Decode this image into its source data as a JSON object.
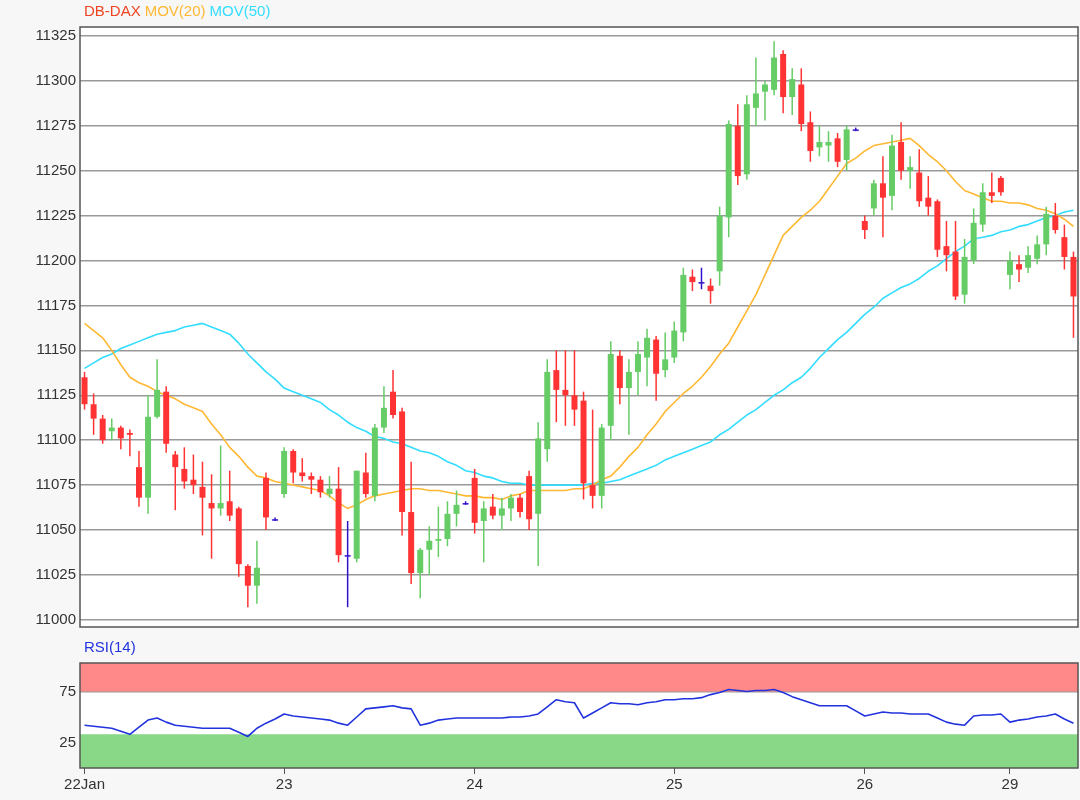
{
  "chart_data": [
    {
      "type": "candlestick",
      "legend": "top left",
      "grid": "y",
      "tick_labels": "y",
      "marker": "none",
      "categories": [
        null,
        null,
        null,
        null,
        null,
        null,
        null,
        null,
        null,
        null,
        null,
        null,
        null,
        null,
        null,
        null,
        null,
        null,
        null,
        null,
        null,
        null,
        null,
        null,
        null,
        null,
        null,
        null,
        null,
        null,
        null,
        null,
        null,
        null,
        null,
        null,
        null,
        null,
        null,
        null,
        null,
        null,
        null,
        null,
        null,
        null,
        null,
        null,
        null,
        null,
        null,
        null,
        null,
        null,
        null,
        null,
        null,
        null,
        null,
        null,
        null,
        null,
        null,
        null,
        null,
        null,
        null,
        null,
        null,
        null,
        null,
        null,
        null,
        null,
        null,
        null,
        null,
        null,
        null,
        null,
        null,
        null,
        null,
        null,
        null,
        null,
        null,
        null,
        null,
        null,
        null,
        null,
        null,
        null,
        null,
        null,
        null,
        null,
        null,
        null,
        null,
        null,
        null,
        null,
        null,
        null,
        null,
        null,
        null,
        null
      ],
      "ylim": [
        10996,
        11330
      ],
      "yticks": [
        11000,
        11025,
        11050,
        11075,
        11100,
        11125,
        11150,
        11175,
        11200,
        11225,
        11250,
        11275,
        11300,
        11325
      ],
      "series": [
        {
          "name": "DB-DAX",
          "color": "#ee4422",
          "ohlc": [
            [
              11135,
              11138,
              11117,
              11120
            ],
            [
              11120,
              11126,
              11103,
              11112
            ],
            [
              11112,
              11114,
              11098,
              11100
            ],
            [
              11105,
              11112,
              11100,
              11107
            ],
            [
              11107,
              11108,
              11095,
              11101
            ],
            [
              11104,
              11106,
              11091,
              11103
            ],
            [
              11085,
              11094,
              11063,
              11068
            ],
            [
              11068,
              11125,
              11059,
              11113
            ],
            [
              11113,
              11145,
              11112,
              11128
            ],
            [
              11127,
              11130,
              11093,
              11098
            ],
            [
              11092,
              11094,
              11061,
              11085
            ],
            [
              11084,
              11096,
              11073,
              11077
            ],
            [
              11078,
              11092,
              11070,
              11075
            ],
            [
              11074,
              11088,
              11047,
              11068
            ],
            [
              11065,
              11081,
              11034,
              11062
            ],
            [
              11062,
              11097,
              11058,
              11065
            ],
            [
              11066,
              11083,
              11055,
              11058
            ],
            [
              11062,
              11063,
              11024,
              11031
            ],
            [
              11030,
              11031,
              11007,
              11019
            ],
            [
              11019,
              11044,
              11009,
              11029
            ],
            [
              11079,
              11082,
              11050,
              11057
            ],
            [
              11056,
              11057,
              11055,
              11056
            ],
            [
              11070,
              11096,
              11068,
              11094
            ],
            [
              11094,
              11095,
              11076,
              11082
            ],
            [
              11082,
              11090,
              11077,
              11080
            ],
            [
              11080,
              11082,
              11070,
              11078
            ],
            [
              11078,
              11080,
              11068,
              11071
            ],
            [
              11070,
              11080,
              11068,
              11073
            ],
            [
              11073,
              11085,
              11032,
              11036
            ],
            [
              11036,
              11055,
              11007,
              11036
            ],
            [
              11034,
              11083,
              11032,
              11083
            ],
            [
              11082,
              11093,
              11068,
              11070
            ],
            [
              11069,
              11109,
              11066,
              11107
            ],
            [
              11107,
              11130,
              11104,
              11118
            ],
            [
              11127,
              11139,
              11112,
              11114
            ],
            [
              11116,
              11118,
              11047,
              11060
            ],
            [
              11060,
              11088,
              11020,
              11026
            ],
            [
              11026,
              11040,
              11012,
              11039
            ],
            [
              11039,
              11052,
              11025,
              11044
            ],
            [
              11044,
              11063,
              11035,
              11045
            ],
            [
              11045,
              11066,
              11041,
              11059
            ],
            [
              11059,
              11072,
              11052,
              11064
            ],
            [
              11065,
              11066,
              11064,
              11065
            ],
            [
              11079,
              11084,
              11048,
              11054
            ],
            [
              11055,
              11066,
              11032,
              11062
            ],
            [
              11063,
              11070,
              11056,
              11058
            ],
            [
              11058,
              11068,
              11050,
              11062
            ],
            [
              11062,
              11070,
              11055,
              11068
            ],
            [
              11068,
              11070,
              11057,
              11060
            ],
            [
              11080,
              11083,
              11050,
              11056
            ],
            [
              11059,
              11110,
              11030,
              11101
            ],
            [
              11095,
              11145,
              11088,
              11138
            ],
            [
              11139,
              11150,
              11110,
              11128
            ],
            [
              11128,
              11150,
              11108,
              11125
            ],
            [
              11125,
              11150,
              11108,
              11117
            ],
            [
              11122,
              11127,
              11067,
              11076
            ],
            [
              11075,
              11117,
              11062,
              11069
            ],
            [
              11069,
              11109,
              11062,
              11107
            ],
            [
              11108,
              11155,
              11100,
              11148
            ],
            [
              11147,
              11150,
              11120,
              11129
            ],
            [
              11129,
              11145,
              11103,
              11138
            ],
            [
              11138,
              11155,
              11125,
              11148
            ],
            [
              11146,
              11162,
              11130,
              11157
            ],
            [
              11156,
              11158,
              11122,
              11137
            ],
            [
              11139,
              11160,
              11135,
              11145
            ],
            [
              11146,
              11166,
              11143,
              11161
            ],
            [
              11160,
              11196,
              11155,
              11192
            ],
            [
              11191,
              11195,
              11183,
              11188
            ],
            [
              11188,
              11196,
              11184,
              11188
            ],
            [
              11186,
              11190,
              11176,
              11183
            ],
            [
              11194,
              11230,
              11186,
              11225
            ],
            [
              11224,
              11278,
              11213,
              11276
            ],
            [
              11275,
              11287,
              11242,
              11247
            ],
            [
              11248,
              11292,
              11245,
              11287
            ],
            [
              11285,
              11313,
              11275,
              11293
            ],
            [
              11294,
              11300,
              11278,
              11298
            ],
            [
              11295,
              11322,
              11292,
              11313
            ],
            [
              11315,
              11317,
              11282,
              11291
            ],
            [
              11291,
              11307,
              11281,
              11301
            ],
            [
              11298,
              11307,
              11272,
              11276
            ],
            [
              11277,
              11283,
              11255,
              11261
            ],
            [
              11263,
              11275,
              11258,
              11266
            ],
            [
              11264,
              11272,
              11255,
              11266
            ],
            [
              11268,
              11271,
              11252,
              11255
            ],
            [
              11256,
              11275,
              11250,
              11273
            ],
            [
              11273,
              11274,
              11272,
              11273
            ],
            [
              11222,
              11225,
              11212,
              11217
            ],
            [
              11229,
              11245,
              11225,
              11243
            ],
            [
              11243,
              11258,
              11213,
              11235
            ],
            [
              11236,
              11270,
              11228,
              11264
            ],
            [
              11266,
              11277,
              11245,
              11250
            ],
            [
              11250,
              11258,
              11240,
              11252
            ],
            [
              11249,
              11262,
              11230,
              11233
            ],
            [
              11235,
              11247,
              11225,
              11230
            ],
            [
              11233,
              11234,
              11202,
              11206
            ],
            [
              11208,
              11222,
              11194,
              11203
            ],
            [
              11205,
              11222,
              11178,
              11180
            ],
            [
              11181,
              11212,
              11176,
              11202
            ],
            [
              11200,
              11229,
              11198,
              11221
            ],
            [
              11220,
              11243,
              11216,
              11238
            ],
            [
              11238,
              11249,
              11232,
              11236
            ],
            [
              11246,
              11247,
              11236,
              11238
            ],
            [
              11192,
              11205,
              11184,
              11200
            ],
            [
              11198,
              11203,
              11188,
              11195
            ],
            [
              11196,
              11208,
              11193,
              11203
            ],
            [
              11201,
              11214,
              11198,
              11209
            ],
            [
              11209,
              11230,
              11203,
              11226
            ],
            [
              11225,
              11232,
              11215,
              11217
            ],
            [
              11213,
              11220,
              11195,
              11202
            ],
            [
              11202,
              11205,
              11157,
              11180
            ]
          ],
          "colors": [
            "#ff3333",
            "#ff3333",
            "#ff3333",
            "#66cc66",
            "#ff3333",
            "#ff3333",
            "#ff3333",
            "#66cc66",
            "#66cc66",
            "#ff3333",
            "#ff3333",
            "#ff3333",
            "#ff3333",
            "#ff3333",
            "#ff3333",
            "#66cc66",
            "#ff3333",
            "#ff3333",
            "#ff3333",
            "#66cc66",
            "#ff3333",
            "#3311cc",
            "#66cc66",
            "#ff3333",
            "#ff3333",
            "#ff3333",
            "#ff3333",
            "#66cc66",
            "#ff3333",
            "#3311cc",
            "#66cc66",
            "#ff3333",
            "#66cc66",
            "#66cc66",
            "#ff3333",
            "#ff3333",
            "#ff3333",
            "#66cc66",
            "#66cc66",
            "#66cc66",
            "#66cc66",
            "#66cc66",
            "#3311cc",
            "#ff3333",
            "#66cc66",
            "#ff3333",
            "#66cc66",
            "#66cc66",
            "#ff3333",
            "#ff3333",
            "#66cc66",
            "#66cc66",
            "#ff3333",
            "#ff3333",
            "#ff3333",
            "#ff3333",
            "#ff3333",
            "#66cc66",
            "#66cc66",
            "#ff3333",
            "#66cc66",
            "#66cc66",
            "#66cc66",
            "#ff3333",
            "#66cc66",
            "#66cc66",
            "#66cc66",
            "#ff3333",
            "#3311cc",
            "#ff3333",
            "#66cc66",
            "#66cc66",
            "#ff3333",
            "#66cc66",
            "#66cc66",
            "#66cc66",
            "#66cc66",
            "#ff3333",
            "#66cc66",
            "#ff3333",
            "#ff3333",
            "#66cc66",
            "#66cc66",
            "#ff3333",
            "#66cc66",
            "#3311cc",
            "#ff3333",
            "#66cc66",
            "#ff3333",
            "#66cc66",
            "#ff3333",
            "#66cc66",
            "#ff3333",
            "#ff3333",
            "#ff3333",
            "#ff3333",
            "#ff3333",
            "#66cc66",
            "#66cc66",
            "#66cc66",
            "#ff3333",
            "#ff3333",
            "#66cc66",
            "#ff3333",
            "#66cc66",
            "#66cc66",
            "#66cc66",
            "#ff3333",
            "#ff3333",
            "#ff3333"
          ]
        },
        {
          "type": "line",
          "name": "MOV(20)",
          "color": "#ffb833",
          "values": [
            11165,
            11161,
            11157,
            11150,
            11142,
            11135,
            11132,
            11130,
            11127,
            11125,
            11123,
            11120,
            11118,
            11116,
            11109,
            11103,
            11096,
            11091,
            11085,
            11080,
            11079,
            11077,
            11076,
            11075,
            11074,
            11073,
            11072,
            11069,
            11065,
            11062,
            11064,
            11067,
            11069,
            11070,
            11071,
            11072,
            11073,
            11073,
            11072,
            11072,
            11071,
            11070,
            11069,
            11069,
            11068,
            11068,
            11067,
            11069,
            11070,
            11072,
            11072,
            11072,
            11072,
            11072,
            11073,
            11073,
            11075,
            11078,
            11080,
            11085,
            11091,
            11096,
            11103,
            11109,
            11116,
            11121,
            11126,
            11130,
            11135,
            11141,
            11148,
            11154,
            11163,
            11172,
            11181,
            11192,
            11203,
            11214,
            11219,
            11224,
            11228,
            11233,
            11240,
            11247,
            11254,
            11257,
            11261,
            11264,
            11265,
            11266,
            11267,
            11268,
            11264,
            11259,
            11255,
            11250,
            11244,
            11239,
            11237,
            11235,
            11233,
            11233,
            11232,
            11232,
            11231,
            11229,
            11228,
            11226,
            11223,
            11219
          ]
        },
        {
          "type": "line",
          "name": "MOV(50)",
          "color": "#33ddff",
          "values": [
            11140,
            11143,
            11146,
            11148,
            11151,
            11153,
            11155,
            11157,
            11159,
            11160,
            11161,
            11163,
            11164,
            11165,
            11163,
            11161,
            11159,
            11154,
            11148,
            11143,
            11138,
            11134,
            11129,
            11127,
            11125,
            11123,
            11121,
            11117,
            11114,
            11110,
            11107,
            11105,
            11102,
            11101,
            11099,
            11098,
            11096,
            11094,
            11093,
            11091,
            11088,
            11086,
            11083,
            11082,
            11080,
            11079,
            11077,
            11076,
            11076,
            11075,
            11075,
            11075,
            11075,
            11075,
            11075,
            11075,
            11076,
            11076,
            11077,
            11078,
            11080,
            11082,
            11084,
            11086,
            11089,
            11091,
            11093,
            11095,
            11097,
            11099,
            11103,
            11106,
            11110,
            11114,
            11117,
            11121,
            11125,
            11128,
            11132,
            11135,
            11140,
            11146,
            11151,
            11156,
            11160,
            11165,
            11170,
            11174,
            11179,
            11182,
            11185,
            11187,
            11190,
            11194,
            11197,
            11201,
            11205,
            11208,
            11212,
            11213,
            11214,
            11216,
            11217,
            11219,
            11220,
            11222,
            11224,
            11225,
            11227,
            11228
          ]
        }
      ]
    },
    {
      "type": "line",
      "legend": "top left",
      "grid": "y",
      "marker": "none",
      "categories": [
        "22Jan",
        null,
        null,
        null,
        null,
        null,
        null,
        null,
        null,
        null,
        null,
        null,
        null,
        null,
        null,
        null,
        null,
        null,
        null,
        null,
        null,
        null,
        "23",
        null,
        null,
        null,
        null,
        null,
        null,
        null,
        null,
        null,
        null,
        null,
        null,
        null,
        null,
        null,
        null,
        null,
        null,
        null,
        null,
        "24",
        null,
        null,
        null,
        null,
        null,
        null,
        null,
        null,
        null,
        null,
        null,
        null,
        null,
        null,
        null,
        null,
        null,
        null,
        null,
        null,
        null,
        "25",
        null,
        null,
        null,
        null,
        null,
        null,
        null,
        null,
        null,
        null,
        null,
        null,
        null,
        null,
        null,
        null,
        null,
        null,
        null,
        null,
        "26",
        null,
        null,
        null,
        null,
        null,
        null,
        null,
        null,
        null,
        null,
        null,
        null,
        null,
        null,
        null,
        "29",
        null,
        null,
        null,
        null,
        null,
        null,
        null
      ],
      "ylim": [
        0,
        103
      ],
      "yticks": [
        25,
        75
      ],
      "bands": [
        {
          "axis": "y",
          "from": 75,
          "to": 103,
          "color": "#ff8888"
        },
        {
          "axis": "y",
          "from": 0,
          "to": 33,
          "color": "#88d888"
        }
      ],
      "series": [
        {
          "name": "RSI(14)",
          "color": "#2233dd",
          "values": [
            42,
            41,
            40,
            39,
            36,
            33,
            40,
            47,
            49,
            45,
            42,
            41,
            40,
            39,
            39,
            39,
            39,
            35,
            31,
            39,
            44,
            48,
            53,
            51,
            50,
            49,
            48,
            47,
            44,
            42,
            50,
            58,
            59,
            60,
            61,
            59,
            58,
            42,
            44,
            47,
            48,
            49,
            49,
            49,
            49,
            49,
            49,
            50,
            50,
            51,
            53,
            60,
            67,
            65,
            64,
            49,
            54,
            59,
            64,
            63,
            63,
            62,
            64,
            65,
            67,
            67,
            68,
            68,
            69,
            72,
            74,
            77,
            76,
            75,
            76,
            76,
            77,
            74,
            70,
            67,
            64,
            61,
            61,
            61,
            61,
            56,
            51,
            53,
            55,
            54,
            54,
            53,
            53,
            53,
            49,
            45,
            43,
            42,
            51,
            52,
            52,
            53,
            45,
            47,
            48,
            50,
            51,
            53,
            48,
            44
          ]
        }
      ]
    }
  ]
}
